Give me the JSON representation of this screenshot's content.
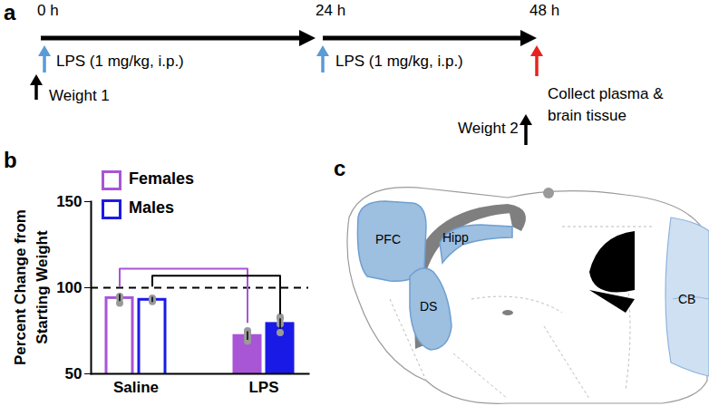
{
  "chart_data": {
    "type": "bar",
    "panel_label": "b",
    "y_label": "Percent Change from Starting Weight",
    "categories": [
      "Saline",
      "LPS"
    ],
    "series": [
      {
        "name": "Females",
        "color": "#a855d6",
        "values": [
          94,
          72
        ],
        "errors": [
          2,
          2.5
        ],
        "points": [
          [
            95,
            94,
            91
          ],
          [
            69,
            71,
            72,
            74,
            75
          ]
        ]
      },
      {
        "name": "Males",
        "color": "#1a1ae6",
        "values": [
          93,
          79
        ],
        "errors": [
          1.5,
          3
        ],
        "points": [
          [
            92,
            93,
            94
          ],
          [
            74,
            79,
            82,
            83
          ]
        ]
      }
    ],
    "ylim": [
      50,
      150
    ],
    "yticks": [
      50,
      100,
      150
    ],
    "legend": "top-left",
    "reference_line": 100,
    "brackets": [
      {
        "series": "Females",
        "from": "Saline",
        "to": "LPS",
        "y": 111,
        "ends": [
          101,
          80
        ],
        "color": "#a855d6"
      },
      {
        "series": "Males",
        "from": "Saline",
        "to": "LPS",
        "y": 107,
        "ends": [
          101,
          85
        ],
        "color": "#000000"
      }
    ]
  },
  "timeline": {
    "panel_label": "a",
    "times": [
      "0 h",
      "24 h",
      "48 h"
    ],
    "events": [
      {
        "label": "LPS (1 mg/kg, i.p.)",
        "at": "0 h",
        "color": "#5b9bd5"
      },
      {
        "label": "Weight 1",
        "at": "0 h",
        "color": "#000000"
      },
      {
        "label": "LPS (1 mg/kg, i.p.)",
        "at": "24 h",
        "color": "#5b9bd5"
      },
      {
        "label": "Collect plasma & brain tissue",
        "at": "48 h",
        "color": "#e8231e"
      },
      {
        "label": "Weight 2",
        "at": "48 h",
        "color": "#000000"
      }
    ]
  },
  "brain_diagram": {
    "panel_label": "c",
    "regions": [
      "PFC",
      "DS",
      "Hipp",
      "CB"
    ]
  }
}
